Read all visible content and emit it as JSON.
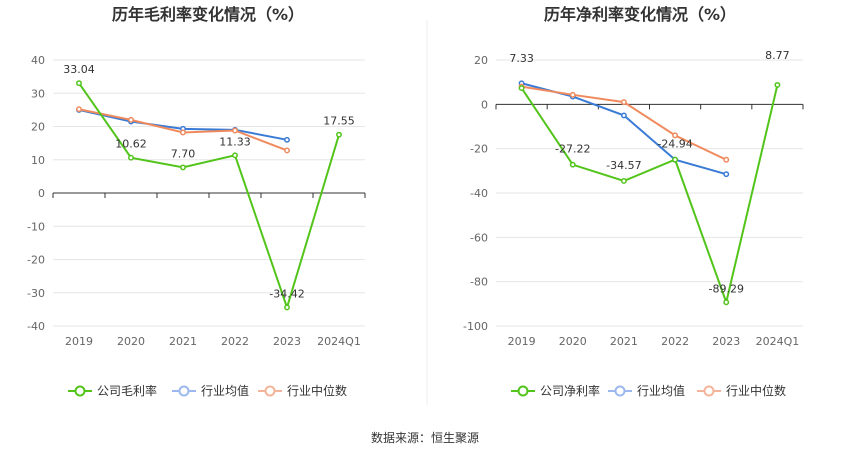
{
  "source": "数据来源：恒生聚源",
  "chart_data": [
    {
      "type": "line",
      "title": "历年毛利率变化情况（%）",
      "categories": [
        "2019",
        "2020",
        "2021",
        "2022",
        "2023",
        "2024Q1"
      ],
      "ylim": [
        -40,
        40
      ],
      "yticks": [
        40,
        30,
        20,
        10,
        0,
        -10,
        -20,
        -30,
        -40
      ],
      "grid": true,
      "legend_position": "bottom",
      "series": [
        {
          "name": "公司毛利率",
          "color": "#52c41a",
          "values": [
            33.04,
            10.62,
            7.7,
            11.33,
            -34.42,
            17.55
          ],
          "labels": [
            "33.04",
            "10.62",
            "7.70",
            "11.33",
            "-34.42",
            "17.55"
          ]
        },
        {
          "name": "行业均值",
          "color": "#3a7bd5",
          "values": [
            25.0,
            21.5,
            19.3,
            19.0,
            16.0,
            null
          ]
        },
        {
          "name": "行业中位数",
          "color": "#f08a5d",
          "values": [
            25.2,
            22.0,
            18.2,
            18.8,
            12.8,
            null
          ]
        }
      ]
    },
    {
      "type": "line",
      "title": "历年净利率变化情况（%）",
      "categories": [
        "2019",
        "2020",
        "2021",
        "2022",
        "2023",
        "2024Q1"
      ],
      "ylim": [
        -100,
        20
      ],
      "yticks": [
        20,
        0,
        -20,
        -40,
        -60,
        -80,
        -100
      ],
      "grid": true,
      "legend_position": "bottom",
      "series": [
        {
          "name": "公司净利率",
          "color": "#52c41a",
          "values": [
            7.33,
            -27.22,
            -34.57,
            -24.94,
            -89.29,
            8.77
          ],
          "labels": [
            "7.33",
            "-27.22",
            "-34.57",
            "-24.94",
            "-89.29",
            "8.77"
          ]
        },
        {
          "name": "行业均值",
          "color": "#3a7bd5",
          "values": [
            9.5,
            3.5,
            -5.0,
            -25.0,
            -31.5,
            null
          ]
        },
        {
          "name": "行业中位数",
          "color": "#f08a5d",
          "values": [
            8.0,
            4.3,
            1.0,
            -14.0,
            -25.0,
            null
          ]
        }
      ]
    }
  ]
}
